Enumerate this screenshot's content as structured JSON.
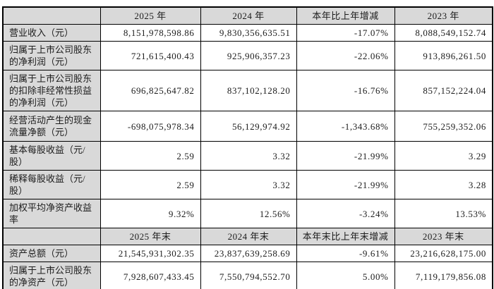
{
  "colors": {
    "header_bg": "#d9d9d9",
    "label_bg": "#d9d9d9",
    "cell_bg": "#ffffff",
    "border": "#000000",
    "text": "#1c1c1c"
  },
  "table": {
    "sections": [
      {
        "header": [
          "",
          "2025 年",
          "2024 年",
          "本年比上年增减",
          "2023 年"
        ],
        "rows": [
          {
            "label": "营业收入（元）",
            "values": [
              "8,151,978,598.86",
              "9,830,356,635.51",
              "-17.07%",
              "8,088,549,152.74"
            ]
          },
          {
            "label": "归属于上市公司股东的净利润（元）",
            "values": [
              "721,615,400.43",
              "925,906,357.23",
              "-22.06%",
              "913,896,261.50"
            ]
          },
          {
            "label": "归属于上市公司股东的扣除非经常性损益的净利润（元）",
            "values": [
              "696,825,647.82",
              "837,102,128.20",
              "-16.76%",
              "857,152,224.04"
            ]
          },
          {
            "label": "经营活动产生的现金流量净额（元）",
            "values": [
              "-698,075,978.34",
              "56,129,974.92",
              "-1,343.68%",
              "755,259,352.06"
            ]
          },
          {
            "label": "基本每股收益（元/股）",
            "values": [
              "2.59",
              "3.32",
              "-21.99%",
              "3.29"
            ]
          },
          {
            "label": "稀释每股收益（元/股）",
            "values": [
              "2.59",
              "3.32",
              "-21.99%",
              "3.28"
            ]
          },
          {
            "label": "加权平均净资产收益率",
            "values": [
              "9.32%",
              "12.56%",
              "-3.24%",
              "13.53%"
            ]
          }
        ]
      },
      {
        "header": [
          "",
          "2025 年末",
          "2024 年末",
          "本年末比上年末增减",
          "2023 年末"
        ],
        "rows": [
          {
            "label": "资产总额（元）",
            "values": [
              "21,545,931,302.35",
              "23,837,639,258.69",
              "-9.61%",
              "23,216,628,175.00"
            ]
          },
          {
            "label": "归属于上市公司股东的净资产（元）",
            "values": [
              "7,928,607,433.45",
              "7,550,794,552.70",
              "5.00%",
              "7,119,179,856.08"
            ]
          }
        ]
      }
    ]
  }
}
